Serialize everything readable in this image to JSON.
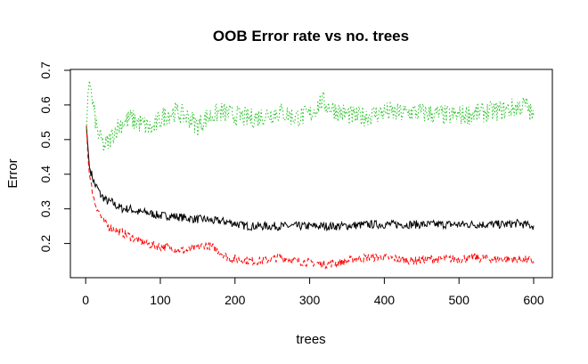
{
  "chart_data": {
    "type": "line",
    "title": "OOB Error rate vs no. trees",
    "xlabel": "trees",
    "ylabel": "Error",
    "xlim": [
      1,
      600
    ],
    "ylim": [
      0.1,
      0.7
    ],
    "x_ticks": [
      0,
      100,
      200,
      300,
      400,
      500,
      600
    ],
    "y_ticks": [
      0.2,
      0.3,
      0.4,
      0.5,
      0.6,
      0.7
    ],
    "grid": false,
    "legend": "none",
    "series": [
      {
        "color": "#000000",
        "line_style": "solid",
        "points": [
          [
            1,
            0.54
          ],
          [
            3,
            0.48
          ],
          [
            5,
            0.42
          ],
          [
            8,
            0.4
          ],
          [
            12,
            0.37
          ],
          [
            16,
            0.36
          ],
          [
            20,
            0.34
          ],
          [
            25,
            0.33
          ],
          [
            30,
            0.32
          ],
          [
            35,
            0.32
          ],
          [
            40,
            0.31
          ],
          [
            50,
            0.3
          ],
          [
            60,
            0.3
          ],
          [
            70,
            0.29
          ],
          [
            80,
            0.29
          ],
          [
            90,
            0.285
          ],
          [
            100,
            0.28
          ],
          [
            110,
            0.28
          ],
          [
            120,
            0.278
          ],
          [
            130,
            0.275
          ],
          [
            140,
            0.272
          ],
          [
            150,
            0.27
          ],
          [
            160,
            0.27
          ],
          [
            170,
            0.265
          ],
          [
            180,
            0.265
          ],
          [
            190,
            0.262
          ],
          [
            200,
            0.258
          ],
          [
            210,
            0.252
          ],
          [
            220,
            0.25
          ],
          [
            240,
            0.25
          ],
          [
            260,
            0.25
          ],
          [
            280,
            0.25
          ],
          [
            300,
            0.25
          ],
          [
            320,
            0.25
          ],
          [
            340,
            0.25
          ],
          [
            360,
            0.252
          ],
          [
            380,
            0.255
          ],
          [
            400,
            0.255
          ],
          [
            420,
            0.255
          ],
          [
            440,
            0.255
          ],
          [
            460,
            0.255
          ],
          [
            480,
            0.255
          ],
          [
            500,
            0.255
          ],
          [
            520,
            0.255
          ],
          [
            540,
            0.255
          ],
          [
            560,
            0.255
          ],
          [
            580,
            0.258
          ],
          [
            600,
            0.25
          ]
        ]
      },
      {
        "color": "#ff0000",
        "line_style": "dashed",
        "points": [
          [
            1,
            0.54
          ],
          [
            3,
            0.45
          ],
          [
            5,
            0.4
          ],
          [
            8,
            0.36
          ],
          [
            12,
            0.32
          ],
          [
            16,
            0.3
          ],
          [
            20,
            0.28
          ],
          [
            25,
            0.26
          ],
          [
            30,
            0.25
          ],
          [
            40,
            0.24
          ],
          [
            50,
            0.23
          ],
          [
            60,
            0.22
          ],
          [
            70,
            0.21
          ],
          [
            80,
            0.2
          ],
          [
            90,
            0.195
          ],
          [
            100,
            0.19
          ],
          [
            110,
            0.19
          ],
          [
            120,
            0.185
          ],
          [
            130,
            0.18
          ],
          [
            140,
            0.18
          ],
          [
            150,
            0.19
          ],
          [
            160,
            0.195
          ],
          [
            170,
            0.19
          ],
          [
            180,
            0.175
          ],
          [
            190,
            0.16
          ],
          [
            200,
            0.155
          ],
          [
            220,
            0.15
          ],
          [
            240,
            0.15
          ],
          [
            260,
            0.16
          ],
          [
            280,
            0.15
          ],
          [
            300,
            0.145
          ],
          [
            320,
            0.14
          ],
          [
            340,
            0.145
          ],
          [
            360,
            0.155
          ],
          [
            380,
            0.16
          ],
          [
            400,
            0.16
          ],
          [
            420,
            0.155
          ],
          [
            440,
            0.15
          ],
          [
            460,
            0.155
          ],
          [
            480,
            0.155
          ],
          [
            500,
            0.155
          ],
          [
            520,
            0.16
          ],
          [
            540,
            0.155
          ],
          [
            560,
            0.155
          ],
          [
            580,
            0.155
          ],
          [
            600,
            0.15
          ]
        ]
      },
      {
        "color": "#22c222",
        "line_style": "dotted",
        "points": [
          [
            1,
            0.52
          ],
          [
            3,
            0.63
          ],
          [
            5,
            0.67
          ],
          [
            8,
            0.62
          ],
          [
            12,
            0.57
          ],
          [
            16,
            0.52
          ],
          [
            20,
            0.5
          ],
          [
            25,
            0.48
          ],
          [
            30,
            0.49
          ],
          [
            35,
            0.51
          ],
          [
            40,
            0.53
          ],
          [
            50,
            0.55
          ],
          [
            60,
            0.56
          ],
          [
            70,
            0.55
          ],
          [
            80,
            0.54
          ],
          [
            90,
            0.53
          ],
          [
            100,
            0.56
          ],
          [
            110,
            0.575
          ],
          [
            120,
            0.58
          ],
          [
            130,
            0.57
          ],
          [
            140,
            0.56
          ],
          [
            150,
            0.54
          ],
          [
            160,
            0.56
          ],
          [
            170,
            0.57
          ],
          [
            180,
            0.58
          ],
          [
            190,
            0.575
          ],
          [
            200,
            0.57
          ],
          [
            220,
            0.56
          ],
          [
            240,
            0.57
          ],
          [
            260,
            0.58
          ],
          [
            280,
            0.565
          ],
          [
            300,
            0.57
          ],
          [
            315,
            0.61
          ],
          [
            330,
            0.59
          ],
          [
            340,
            0.58
          ],
          [
            360,
            0.565
          ],
          [
            380,
            0.57
          ],
          [
            400,
            0.58
          ],
          [
            420,
            0.575
          ],
          [
            440,
            0.58
          ],
          [
            460,
            0.575
          ],
          [
            480,
            0.57
          ],
          [
            500,
            0.57
          ],
          [
            520,
            0.575
          ],
          [
            540,
            0.58
          ],
          [
            560,
            0.585
          ],
          [
            580,
            0.595
          ],
          [
            590,
            0.6
          ],
          [
            600,
            0.56
          ]
        ]
      }
    ]
  }
}
